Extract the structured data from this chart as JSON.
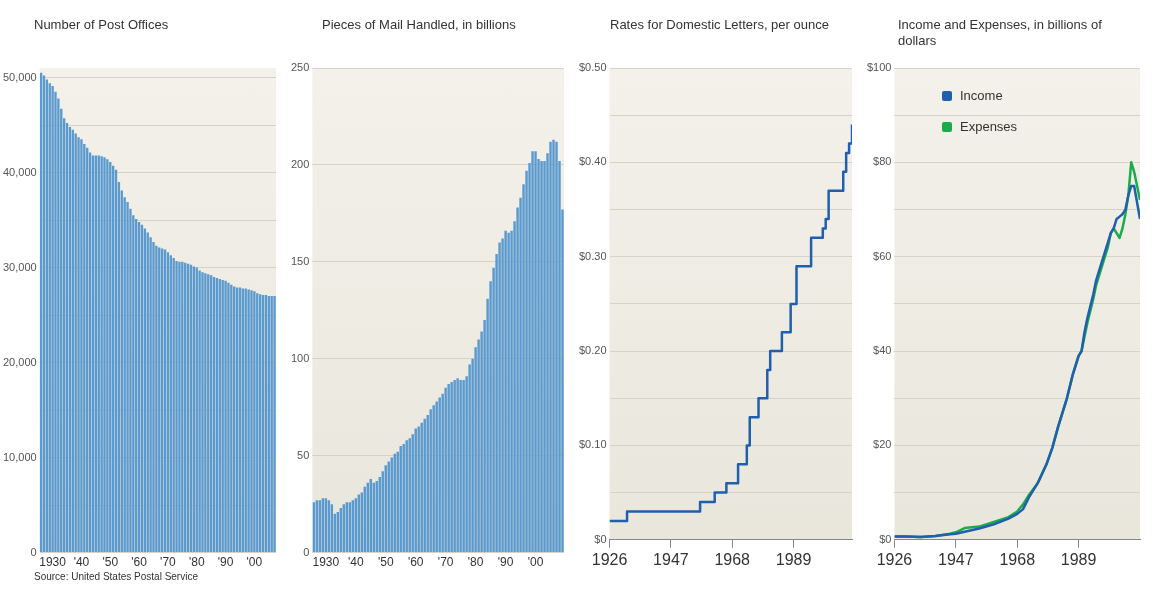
{
  "chart_data": [
    {
      "type": "bar",
      "title": "Number of Post Offices",
      "annotations": [
        "Source: United States Postal Service"
      ],
      "color": "#5b9acf",
      "grid": "y",
      "x": [
        1926,
        1927,
        1928,
        1929,
        1930,
        1931,
        1932,
        1933,
        1934,
        1935,
        1936,
        1937,
        1938,
        1939,
        1940,
        1941,
        1942,
        1943,
        1944,
        1945,
        1946,
        1947,
        1948,
        1949,
        1950,
        1951,
        1952,
        1953,
        1954,
        1955,
        1956,
        1957,
        1958,
        1959,
        1960,
        1961,
        1962,
        1963,
        1964,
        1965,
        1966,
        1967,
        1968,
        1969,
        1970,
        1971,
        1972,
        1973,
        1974,
        1975,
        1976,
        1977,
        1978,
        1979,
        1980,
        1981,
        1982,
        1983,
        1984,
        1985,
        1986,
        1987,
        1988,
        1989,
        1990,
        1991,
        1992,
        1993,
        1994,
        1995,
        1996,
        1997,
        1998,
        1999,
        2000,
        2001,
        2002,
        2003,
        2004,
        2005,
        2006,
        2007
      ],
      "values": [
        50500,
        50200,
        49800,
        49400,
        49100,
        48500,
        47800,
        46700,
        45700,
        45200,
        44800,
        44500,
        44100,
        43700,
        43500,
        43000,
        42600,
        42100,
        41800,
        41800,
        41800,
        41700,
        41600,
        41400,
        41100,
        40700,
        40300,
        39000,
        38100,
        37400,
        36900,
        36200,
        35500,
        35100,
        34800,
        34500,
        34100,
        33700,
        33200,
        32700,
        32300,
        32100,
        32000,
        31900,
        31600,
        31300,
        31000,
        30700,
        30600,
        30600,
        30500,
        30400,
        30300,
        30100,
        30000,
        29700,
        29500,
        29400,
        29300,
        29200,
        29000,
        28900,
        28800,
        28700,
        28600,
        28400,
        28200,
        28000,
        27900,
        27900,
        27800,
        27800,
        27700,
        27600,
        27500,
        27300,
        27200,
        27100,
        27100,
        27000,
        27000,
        27000
      ],
      "xlim": [
        1925.5,
        2007.5
      ],
      "xticks": [
        {
          "value": 1930,
          "label": "1930"
        },
        {
          "value": 1940,
          "label": "'40"
        },
        {
          "value": 1950,
          "label": "'50"
        },
        {
          "value": 1960,
          "label": "'60"
        },
        {
          "value": 1970,
          "label": "'70"
        },
        {
          "value": 1980,
          "label": "'80"
        },
        {
          "value": 1990,
          "label": "'90"
        },
        {
          "value": 2000,
          "label": "'00"
        }
      ],
      "ylim": [
        0,
        51000
      ],
      "yticks": [
        0,
        {
          "value": 5000,
          "label": null
        },
        {
          "value": 10000,
          "label": "10,000"
        },
        {
          "value": 15000,
          "label": null
        },
        {
          "value": 20000,
          "label": "20,000"
        },
        {
          "value": 25000,
          "label": null
        },
        {
          "value": 30000,
          "label": "30,000"
        },
        {
          "value": 35000,
          "label": null
        },
        {
          "value": 40000,
          "label": "40,000"
        },
        {
          "value": 45000,
          "label": null
        },
        {
          "value": 50000,
          "label": "50,000"
        }
      ]
    },
    {
      "type": "bar",
      "title": "Pieces of Mail Handled, in billions",
      "color": "#5b9acf",
      "grid": "y",
      "x": [
        1926,
        1927,
        1928,
        1929,
        1930,
        1931,
        1932,
        1933,
        1934,
        1935,
        1936,
        1937,
        1938,
        1939,
        1940,
        1941,
        1942,
        1943,
        1944,
        1945,
        1946,
        1947,
        1948,
        1949,
        1950,
        1951,
        1952,
        1953,
        1954,
        1955,
        1956,
        1957,
        1958,
        1959,
        1960,
        1961,
        1962,
        1963,
        1964,
        1965,
        1966,
        1967,
        1968,
        1969,
        1970,
        1971,
        1972,
        1973,
        1974,
        1975,
        1976,
        1977,
        1978,
        1979,
        1980,
        1981,
        1982,
        1983,
        1984,
        1985,
        1986,
        1987,
        1988,
        1989,
        1990,
        1991,
        1992,
        1993,
        1994,
        1995,
        1996,
        1997,
        1998,
        1999,
        2000,
        2001,
        2002,
        2003,
        2004,
        2005,
        2006,
        2007,
        2008,
        2009
      ],
      "values": [
        26,
        27,
        27,
        28,
        28,
        27,
        25,
        20,
        21,
        23,
        25,
        26,
        26,
        27,
        28,
        30,
        31,
        34,
        36,
        38,
        36,
        37,
        39,
        42,
        45,
        47,
        49,
        51,
        52,
        55,
        56,
        58,
        59,
        61,
        64,
        65,
        67,
        69,
        71,
        74,
        76,
        78,
        80,
        82,
        85,
        87,
        88,
        89,
        90,
        89,
        89,
        91,
        97,
        100,
        106,
        110,
        114,
        120,
        131,
        140,
        147,
        154,
        160,
        162,
        166,
        165,
        166,
        171,
        178,
        183,
        190,
        197,
        201,
        207,
        207,
        203,
        202,
        202,
        206,
        212,
        213,
        212,
        202,
        177
      ],
      "xlim": [
        1925.5,
        2009.5
      ],
      "xticks": [
        {
          "value": 1930,
          "label": "1930"
        },
        {
          "value": 1940,
          "label": "'40"
        },
        {
          "value": 1950,
          "label": "'50"
        },
        {
          "value": 1960,
          "label": "'60"
        },
        {
          "value": 1970,
          "label": "'70"
        },
        {
          "value": 1980,
          "label": "'80"
        },
        {
          "value": 1990,
          "label": "'90"
        },
        {
          "value": 2000,
          "label": "'00"
        }
      ],
      "ylim": [
        0,
        250
      ],
      "yticks": [
        0,
        50,
        100,
        150,
        200,
        250
      ]
    },
    {
      "type": "step",
      "title": "Rates for Domestic Letters, per ounce",
      "color": "#1f5fae",
      "grid": "y",
      "x": [
        1926,
        1932,
        1957,
        1962,
        1966,
        1970,
        1973,
        1974,
        1977,
        1980,
        1981,
        1985,
        1988,
        1990,
        1995,
        1999,
        2000,
        2001,
        2006,
        2007,
        2008,
        2009
      ],
      "values": [
        0.02,
        0.03,
        0.04,
        0.05,
        0.06,
        0.08,
        0.1,
        0.13,
        0.15,
        0.18,
        0.2,
        0.22,
        0.25,
        0.29,
        0.32,
        0.33,
        0.34,
        0.37,
        0.39,
        0.41,
        0.42,
        0.44
      ],
      "xlim": [
        1926,
        2009
      ],
      "xticks": [
        1926,
        1947,
        1968,
        1989
      ],
      "ylim": [
        0,
        0.5
      ],
      "yticks": [
        {
          "value": 0,
          "label": "$0"
        },
        {
          "value": 0.05,
          "label": null
        },
        {
          "value": 0.1,
          "label": "$0.10"
        },
        {
          "value": 0.15,
          "label": null
        },
        {
          "value": 0.2,
          "label": "$0.20"
        },
        {
          "value": 0.25,
          "label": null
        },
        {
          "value": 0.3,
          "label": "$0.30"
        },
        {
          "value": 0.35,
          "label": null
        },
        {
          "value": 0.4,
          "label": "$0.40"
        },
        {
          "value": 0.45,
          "label": null
        },
        {
          "value": 0.5,
          "label": "$0.50"
        }
      ]
    },
    {
      "type": "line",
      "title": "Income and Expenses, in billions of dollars",
      "grid": "y",
      "legend": "top left",
      "x": [
        1926,
        1930,
        1935,
        1940,
        1945,
        1947,
        1950,
        1955,
        1960,
        1965,
        1968,
        1970,
        1972,
        1975,
        1978,
        1980,
        1982,
        1985,
        1987,
        1989,
        1990,
        1991,
        1992,
        1994,
        1995,
        1997,
        1999,
        2000,
        2001,
        2002,
        2003,
        2004,
        2005,
        2006,
        2007,
        2008,
        2010
      ],
      "series": [
        {
          "name": "Income",
          "color": "#1f5fae",
          "values": [
            0.7,
            0.7,
            0.6,
            0.8,
            1.2,
            1.3,
            1.7,
            2.4,
            3.3,
            4.5,
            5.5,
            6.5,
            9,
            12,
            16,
            19.5,
            24,
            30,
            35,
            39,
            40,
            44,
            47,
            52,
            55,
            59,
            63,
            65,
            66,
            68,
            68.5,
            69,
            70,
            73,
            75,
            75,
            68
          ]
        },
        {
          "name": "Expenses",
          "color": "#1aac4b",
          "values": [
            0.7,
            0.7,
            0.6,
            0.8,
            1.3,
            1.6,
            2.5,
            2.8,
            3.8,
            4.8,
            6,
            7.5,
            9.5,
            12,
            16,
            19.5,
            24,
            30,
            35,
            39,
            40,
            43,
            46,
            51,
            54,
            58,
            62,
            65,
            66,
            65,
            64,
            66,
            69,
            73,
            80,
            78,
            72
          ]
        }
      ],
      "xlim": [
        1926,
        2010
      ],
      "xticks": [
        1926,
        1947,
        1968,
        1989
      ],
      "ylim": [
        0,
        100
      ],
      "yticks": [
        {
          "value": 0,
          "label": "$0"
        },
        {
          "value": 10,
          "label": null
        },
        {
          "value": 20,
          "label": "$20"
        },
        {
          "value": 30,
          "label": null
        },
        {
          "value": 40,
          "label": "$40"
        },
        {
          "value": 50,
          "label": null
        },
        {
          "value": 60,
          "label": "$60"
        },
        {
          "value": 70,
          "label": null
        },
        {
          "value": 80,
          "label": "$80"
        },
        {
          "value": 90,
          "label": null
        },
        {
          "value": 100,
          "label": "$100"
        }
      ]
    }
  ]
}
